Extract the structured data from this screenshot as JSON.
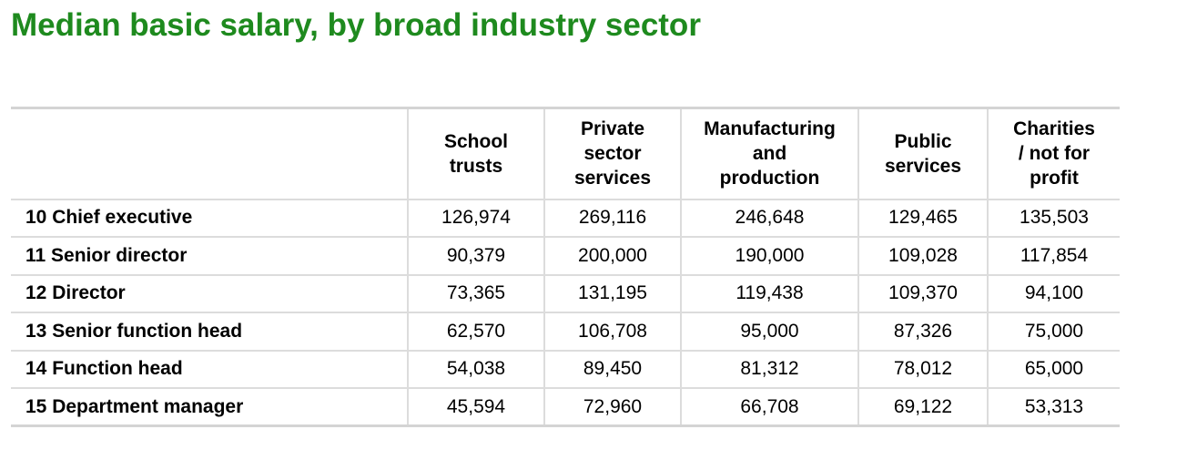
{
  "chart_data": {
    "type": "table",
    "title": "Median basic salary, by broad industry sector",
    "columns": [
      "School trusts",
      "Private sector services",
      "Manufacturing and production",
      "Public services",
      "Charities / not for profit"
    ],
    "header_lines": [
      [
        "School",
        "trusts"
      ],
      [
        "Private",
        "sector",
        "services"
      ],
      [
        "Manufacturing",
        "and",
        "production"
      ],
      [
        "Public",
        "services"
      ],
      [
        "Charities",
        "/ not for",
        "profit"
      ]
    ],
    "rows": [
      {
        "label": "10 Chief executive",
        "values": [
          "126,974",
          "269,116",
          "246,648",
          "129,465",
          "135,503"
        ]
      },
      {
        "label": "11 Senior director",
        "values": [
          "90,379",
          "200,000",
          "190,000",
          "109,028",
          "117,854"
        ]
      },
      {
        "label": "12 Director",
        "values": [
          "73,365",
          "131,195",
          "119,438",
          "109,370",
          "94,100"
        ]
      },
      {
        "label": "13 Senior function head",
        "values": [
          "62,570",
          "106,708",
          "95,000",
          "87,326",
          "75,000"
        ]
      },
      {
        "label": "14 Function head",
        "values": [
          "54,038",
          "89,450",
          "81,312",
          "78,012",
          "65,000"
        ]
      },
      {
        "label": "15 Department manager",
        "values": [
          "45,594",
          "72,960",
          "66,708",
          "69,122",
          "53,313"
        ]
      }
    ]
  },
  "colors": {
    "title": "#1e8a1e",
    "grid": "#dcdcdc"
  }
}
